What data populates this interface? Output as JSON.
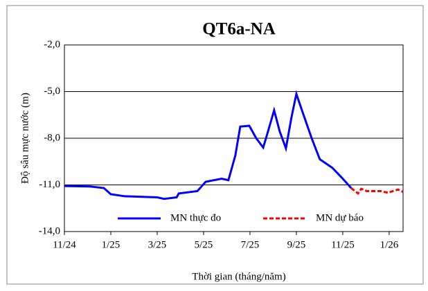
{
  "chart_data": {
    "type": "line",
    "title": "QT6a-NA",
    "xlabel": "Thời gian (tháng/năm)",
    "ylabel": "Độ sâu mực nước (m)",
    "xlim": [
      0,
      14.6
    ],
    "xticks": [
      {
        "value": 0,
        "label": "11/24"
      },
      {
        "value": 2,
        "label": "1/25"
      },
      {
        "value": 4,
        "label": "3/25"
      },
      {
        "value": 6,
        "label": "5/25"
      },
      {
        "value": 8,
        "label": "7/25"
      },
      {
        "value": 10,
        "label": "9/25"
      },
      {
        "value": 12,
        "label": "11/25"
      },
      {
        "value": 14,
        "label": "1/26"
      }
    ],
    "ylim": [
      -14,
      -2
    ],
    "yticks": [
      {
        "value": -14,
        "label": "-14,0"
      },
      {
        "value": -11,
        "label": "-11,0"
      },
      {
        "value": -8,
        "label": "-8,0"
      },
      {
        "value": -5,
        "label": "-5,0"
      },
      {
        "value": -2,
        "label": "-2,0"
      }
    ],
    "grid": true,
    "legend": "bottom",
    "series": [
      {
        "name": "MN thực đo",
        "color": "#0000ff",
        "dash": false,
        "x": [
          0,
          1.1,
          1.7,
          2.0,
          2.6,
          4.0,
          4.3,
          4.84,
          4.93,
          5.73,
          6.09,
          6.78,
          7.07,
          7.37,
          7.58,
          7.97,
          8.27,
          8.57,
          8.78,
          9.04,
          9.28,
          9.55,
          9.79,
          10.0,
          10.24,
          10.66,
          11.01,
          11.55,
          12.0,
          12.36
        ],
        "values": [
          -11.07,
          -11.1,
          -11.2,
          -11.6,
          -11.73,
          -11.8,
          -11.9,
          -11.8,
          -11.55,
          -11.4,
          -10.8,
          -10.6,
          -10.7,
          -9.1,
          -7.25,
          -7.2,
          -8.0,
          -8.6,
          -7.55,
          -6.2,
          -7.55,
          -8.65,
          -6.65,
          -5.15,
          -6.2,
          -8.0,
          -9.35,
          -9.9,
          -10.6,
          -11.2
        ]
      },
      {
        "name": "MN dự báo",
        "color": "#ff0000",
        "dash": true,
        "x": [
          12.36,
          12.66,
          12.8,
          13.04,
          13.64,
          13.94,
          14.39,
          14.6
        ],
        "values": [
          -11.2,
          -11.55,
          -11.25,
          -11.4,
          -11.4,
          -11.5,
          -11.3,
          -11.45
        ]
      }
    ]
  }
}
